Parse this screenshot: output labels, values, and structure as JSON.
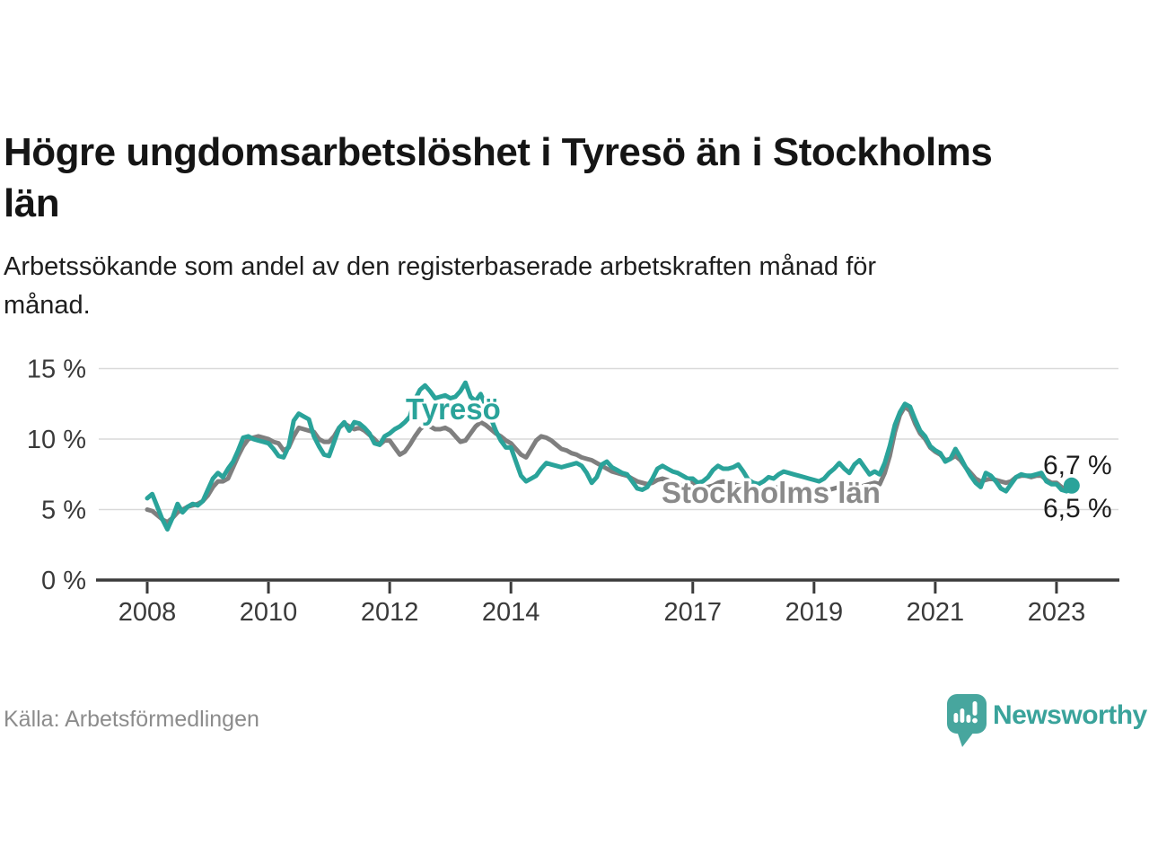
{
  "header": {
    "title_lines": [
      "Högre ungdomsarbetslöshet i Tyresö än i Stockholms",
      "län"
    ],
    "subtitle_lines": [
      "Arbetssökande som andel av den registerbaserade arbetskraften månad för",
      "månad."
    ]
  },
  "footer": {
    "source": "Källa: Arbetsförmedlingen",
    "brand": "Newsworthy"
  },
  "colors": {
    "tyreso_line": "#2aa39a",
    "stockholm_line": "#7f7f7f",
    "stockholm_label": "#8a8a8a",
    "grid": "#d9d9d9",
    "axis": "#3b3b3b",
    "title_text": "#151515",
    "tick_text": "#3a3a3a",
    "source_text": "#8c8c8c",
    "brand_teal": "#3aa39b",
    "label_halo": "#ffffff"
  },
  "chart_data": {
    "type": "line",
    "title": "Högre ungdomsarbetslöshet i Tyresö än i Stockholms län",
    "subtitle": "Arbetssökande som andel av den registerbaserade arbetskraften månad för månad.",
    "unit": "%",
    "frequency": "monthly",
    "x_start": "2008-01",
    "x_end": "2023-04",
    "ylim": [
      0,
      15
    ],
    "grid": "horizontal-only",
    "legend_position": "inline-labels",
    "y_ticks": [
      {
        "label": "15 %",
        "value": 15
      },
      {
        "label": "10 %",
        "value": 10
      },
      {
        "label": "5 %",
        "value": 5
      },
      {
        "label": "0 %",
        "value": 0
      }
    ],
    "x_ticks": [
      {
        "label": "2008",
        "year": 2008
      },
      {
        "label": "2010",
        "year": 2010
      },
      {
        "label": "2012",
        "year": 2012
      },
      {
        "label": "2014",
        "year": 2014
      },
      {
        "label": "2017",
        "year": 2017
      },
      {
        "label": "2019",
        "year": 2019
      },
      {
        "label": "2021",
        "year": 2021
      },
      {
        "label": "2023",
        "year": 2023
      }
    ],
    "series": [
      {
        "name": "Tyresö",
        "color": "#2aa39a",
        "end_label": "6,7 %",
        "end_value": 6.7,
        "values": [
          5.8,
          6.1,
          5.2,
          4.3,
          3.6,
          4.4,
          5.4,
          4.8,
          5.2,
          5.4,
          5.3,
          5.6,
          6.4,
          7.2,
          7.6,
          7.3,
          7.9,
          8.4,
          9.2,
          10.1,
          10.2,
          10.0,
          9.9,
          9.8,
          9.7,
          9.3,
          8.8,
          8.7,
          9.5,
          11.3,
          11.8,
          11.6,
          11.4,
          10.2,
          9.5,
          8.9,
          8.8,
          9.8,
          10.8,
          11.2,
          10.6,
          11.2,
          11.1,
          10.8,
          10.4,
          9.7,
          9.6,
          10.2,
          10.4,
          10.7,
          10.9,
          11.2,
          11.6,
          12.8,
          13.5,
          13.8,
          13.4,
          12.9,
          13.0,
          13.1,
          12.9,
          13.0,
          13.4,
          14.0,
          13.0,
          12.7,
          13.2,
          12.4,
          11.5,
          10.6,
          9.9,
          9.4,
          9.4,
          8.4,
          7.4,
          7.0,
          7.2,
          7.4,
          7.9,
          8.3,
          8.2,
          8.1,
          8.0,
          8.1,
          8.2,
          8.3,
          8.1,
          7.6,
          6.9,
          7.3,
          8.2,
          8.4,
          8.0,
          7.8,
          7.6,
          7.5,
          7.0,
          6.5,
          6.4,
          6.6,
          7.2,
          7.9,
          8.1,
          7.9,
          7.7,
          7.6,
          7.4,
          7.2,
          7.2,
          6.9,
          7.0,
          7.3,
          7.8,
          8.1,
          7.9,
          7.9,
          8.0,
          8.2,
          7.7,
          7.1,
          6.9,
          6.8,
          7.0,
          7.3,
          7.2,
          7.5,
          7.7,
          7.6,
          7.5,
          7.4,
          7.3,
          7.2,
          7.1,
          7.0,
          7.2,
          7.6,
          7.9,
          8.3,
          7.9,
          7.6,
          8.2,
          8.5,
          8.0,
          7.5,
          7.7,
          7.5,
          8.3,
          9.5,
          11.0,
          11.9,
          12.5,
          12.3,
          11.4,
          10.6,
          10.2,
          9.5,
          9.2,
          9.0,
          8.4,
          8.6,
          9.3,
          8.7,
          8.0,
          7.4,
          6.9,
          6.6,
          7.6,
          7.4,
          7.0,
          6.5,
          6.3,
          6.8,
          7.3,
          7.5,
          7.4,
          7.4,
          7.5,
          7.6,
          7.0,
          6.8,
          6.8,
          6.4,
          6.3,
          6.7
        ]
      },
      {
        "name": "Stockholms län",
        "color": "#7f7f7f",
        "end_label": "6,5 %",
        "end_value": 6.5,
        "values": [
          5.0,
          4.9,
          4.6,
          4.3,
          4.1,
          4.4,
          4.8,
          5.0,
          5.2,
          5.3,
          5.4,
          5.6,
          6.0,
          6.6,
          7.0,
          7.0,
          7.2,
          8.0,
          8.8,
          9.5,
          10.0,
          10.1,
          10.2,
          10.1,
          10.0,
          9.8,
          9.7,
          9.2,
          9.4,
          10.2,
          10.8,
          10.7,
          10.6,
          10.5,
          10.0,
          9.8,
          9.8,
          10.2,
          10.8,
          11.1,
          10.9,
          10.7,
          10.8,
          10.6,
          10.3,
          10.0,
          9.6,
          9.9,
          9.9,
          9.4,
          8.9,
          9.1,
          9.6,
          10.2,
          10.7,
          11.0,
          10.9,
          10.7,
          10.7,
          10.8,
          10.6,
          10.2,
          9.8,
          9.9,
          10.4,
          10.9,
          11.2,
          11.0,
          10.7,
          10.4,
          10.2,
          9.9,
          9.7,
          9.3,
          8.9,
          8.7,
          9.3,
          9.9,
          10.2,
          10.1,
          9.9,
          9.6,
          9.3,
          9.2,
          9.0,
          8.9,
          8.7,
          8.6,
          8.5,
          8.3,
          8.1,
          7.9,
          7.7,
          7.6,
          7.5,
          7.4,
          7.2,
          7.0,
          6.9,
          6.8,
          6.9,
          7.1,
          7.2,
          7.1,
          6.9,
          6.8,
          6.7,
          6.8,
          6.9,
          6.7,
          6.6,
          6.6,
          6.7,
          6.9,
          7.0,
          6.9,
          6.8,
          6.7,
          6.6,
          6.5,
          6.4,
          6.3,
          6.3,
          6.4,
          6.5,
          6.6,
          6.7,
          6.6,
          6.5,
          6.4,
          6.4,
          6.3,
          6.3,
          6.2,
          6.3,
          6.4,
          6.5,
          6.6,
          6.6,
          6.5,
          6.5,
          6.6,
          6.7,
          6.8,
          6.9,
          6.8,
          7.6,
          8.8,
          10.5,
          11.7,
          12.3,
          12.0,
          11.1,
          10.4,
          10.0,
          9.4,
          9.1,
          8.9,
          8.5,
          8.6,
          8.8,
          8.5,
          8.0,
          7.6,
          7.2,
          7.0,
          7.1,
          7.2,
          7.1,
          7.0,
          6.9,
          7.0,
          7.3,
          7.4,
          7.4,
          7.3,
          7.4,
          7.4,
          7.1,
          6.9,
          6.9,
          6.6,
          6.4,
          6.5
        ]
      }
    ]
  }
}
